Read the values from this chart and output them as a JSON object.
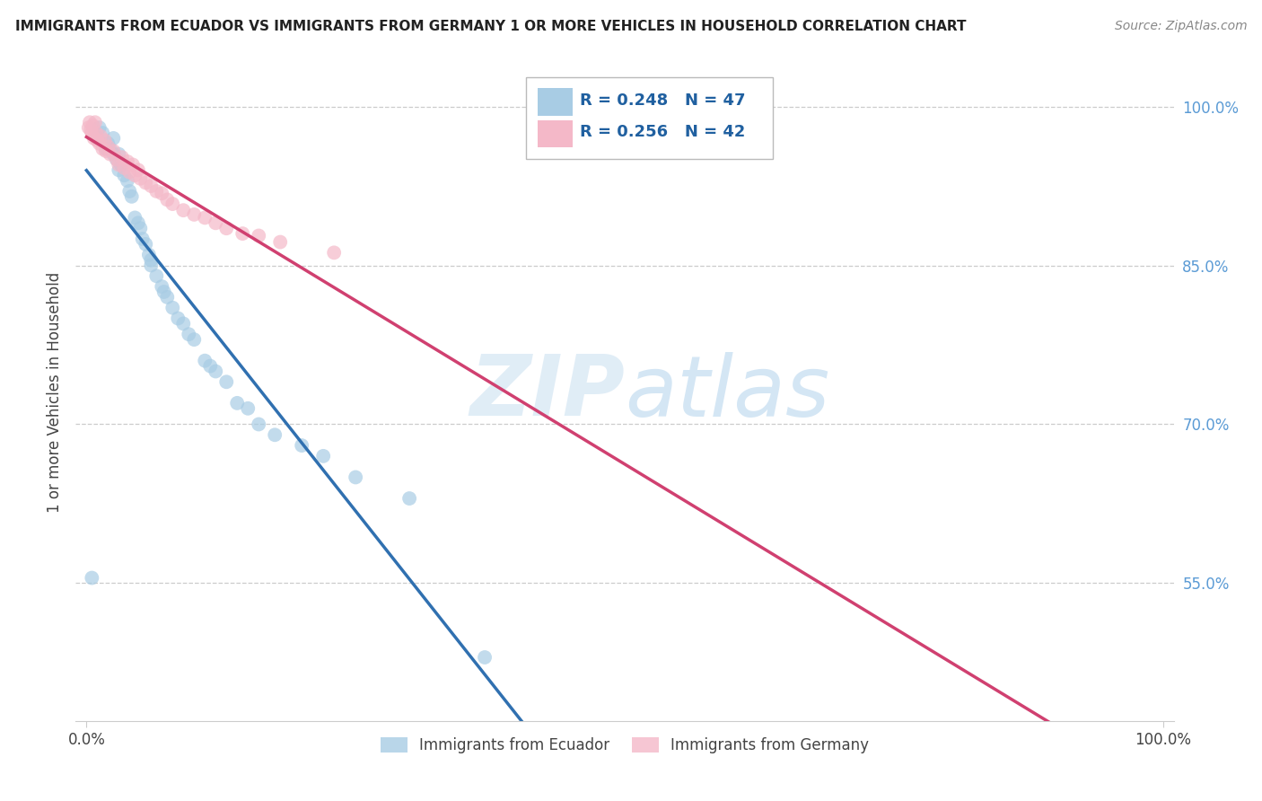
{
  "title": "IMMIGRANTS FROM ECUADOR VS IMMIGRANTS FROM GERMANY 1 OR MORE VEHICLES IN HOUSEHOLD CORRELATION CHART",
  "source": "Source: ZipAtlas.com",
  "ylabel": "1 or more Vehicles in Household",
  "watermark_zip": "ZIP",
  "watermark_atlas": "atlas",
  "legend_blue_label": "Immigrants from Ecuador",
  "legend_pink_label": "Immigrants from Germany",
  "r_blue": 0.248,
  "n_blue": 47,
  "r_pink": 0.256,
  "n_pink": 42,
  "blue_color": "#a8cce4",
  "pink_color": "#f4b8c8",
  "blue_line_color": "#3070b0",
  "pink_line_color": "#d04070",
  "blue_scatter_x": [
    0.005,
    0.01,
    0.012,
    0.015,
    0.018,
    0.02,
    0.022,
    0.025,
    0.025,
    0.028,
    0.03,
    0.03,
    0.032,
    0.035,
    0.038,
    0.04,
    0.042,
    0.045,
    0.048,
    0.05,
    0.052,
    0.055,
    0.058,
    0.06,
    0.06,
    0.065,
    0.07,
    0.072,
    0.075,
    0.08,
    0.085,
    0.09,
    0.095,
    0.1,
    0.11,
    0.115,
    0.12,
    0.13,
    0.14,
    0.15,
    0.16,
    0.175,
    0.2,
    0.22,
    0.25,
    0.3,
    0.37
  ],
  "blue_scatter_y": [
    0.555,
    0.97,
    0.98,
    0.975,
    0.96,
    0.965,
    0.96,
    0.955,
    0.97,
    0.95,
    0.94,
    0.955,
    0.945,
    0.935,
    0.93,
    0.92,
    0.915,
    0.895,
    0.89,
    0.885,
    0.875,
    0.87,
    0.86,
    0.855,
    0.85,
    0.84,
    0.83,
    0.825,
    0.82,
    0.81,
    0.8,
    0.795,
    0.785,
    0.78,
    0.76,
    0.755,
    0.75,
    0.74,
    0.72,
    0.715,
    0.7,
    0.69,
    0.68,
    0.67,
    0.65,
    0.63,
    0.48
  ],
  "pink_scatter_x": [
    0.002,
    0.003,
    0.004,
    0.005,
    0.006,
    0.007,
    0.008,
    0.009,
    0.01,
    0.012,
    0.013,
    0.015,
    0.017,
    0.018,
    0.02,
    0.022,
    0.025,
    0.028,
    0.03,
    0.033,
    0.035,
    0.038,
    0.04,
    0.043,
    0.045,
    0.048,
    0.05,
    0.055,
    0.06,
    0.065,
    0.07,
    0.075,
    0.08,
    0.09,
    0.1,
    0.11,
    0.12,
    0.13,
    0.145,
    0.16,
    0.18,
    0.23
  ],
  "pink_scatter_y": [
    0.98,
    0.985,
    0.978,
    0.975,
    0.982,
    0.97,
    0.985,
    0.975,
    0.968,
    0.965,
    0.972,
    0.96,
    0.968,
    0.958,
    0.962,
    0.955,
    0.958,
    0.95,
    0.945,
    0.952,
    0.942,
    0.948,
    0.938,
    0.945,
    0.935,
    0.94,
    0.932,
    0.928,
    0.925,
    0.92,
    0.918,
    0.912,
    0.908,
    0.902,
    0.898,
    0.895,
    0.89,
    0.885,
    0.88,
    0.878,
    0.872,
    0.862
  ],
  "xlim": [
    -0.01,
    1.01
  ],
  "ylim": [
    0.42,
    1.04
  ],
  "y_tick_positions": [
    0.55,
    0.7,
    0.85,
    1.0
  ],
  "y_tick_labels": [
    "55.0%",
    "70.0%",
    "85.0%",
    "100.0%"
  ],
  "x_tick_positions": [
    0.0,
    1.0
  ],
  "x_tick_labels": [
    "0.0%",
    "100.0%"
  ]
}
